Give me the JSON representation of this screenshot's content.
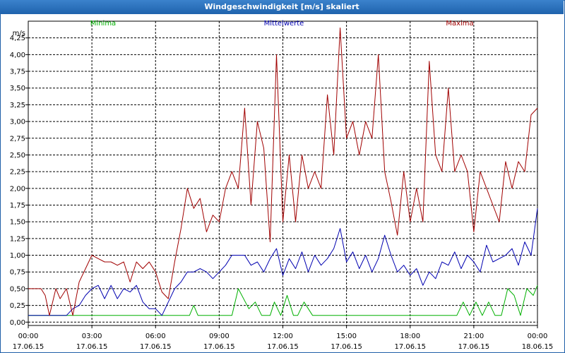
{
  "window": {
    "title": "Windgeschwindigkeit [m/s] skaliert"
  },
  "chart_data": {
    "type": "line",
    "title": "Windgeschwindigkeit [m/s] skaliert",
    "ylabel": "m/s",
    "ylim": [
      -0.05,
      4.5
    ],
    "xlim": [
      0,
      24
    ],
    "y_ticks": [
      "0,00",
      "0,25",
      "0,50",
      "0,75",
      "1,00",
      "1,25",
      "1,50",
      "1,75",
      "2,00",
      "2,25",
      "2,50",
      "2,75",
      "3,00",
      "3,25",
      "3,50",
      "3,75",
      "4,00",
      "4,25"
    ],
    "y_tick_values": [
      0,
      0.25,
      0.5,
      0.75,
      1,
      1.25,
      1.5,
      1.75,
      2,
      2.25,
      2.5,
      2.75,
      3,
      3.25,
      3.5,
      3.75,
      4,
      4.25
    ],
    "x_ticks": [
      {
        "time": "00:00",
        "date": "17.06.15"
      },
      {
        "time": "03:00",
        "date": "17.06.15"
      },
      {
        "time": "06:00",
        "date": "17.06.15"
      },
      {
        "time": "09:00",
        "date": "17.06.15"
      },
      {
        "time": "12:00",
        "date": "17.06.15"
      },
      {
        "time": "15:00",
        "date": "17.06.15"
      },
      {
        "time": "18:00",
        "date": "17.06.15"
      },
      {
        "time": "21:00",
        "date": "17.06.15"
      },
      {
        "time": "00:00",
        "date": "18.06.15"
      }
    ],
    "x_tick_hours": [
      0,
      3,
      6,
      9,
      12,
      15,
      18,
      21,
      24
    ],
    "legend": [
      "Minima",
      "Mittelwerte",
      "Maxima"
    ],
    "series": [
      {
        "name": "Minima",
        "color": "#00b000",
        "x": [
          0,
          7.6,
          7.8,
          8.0,
          9.6,
          9.9,
          10.4,
          10.7,
          11.0,
          11.4,
          11.6,
          11.9,
          12.2,
          12.5,
          12.7,
          13.0,
          13.4,
          13.8,
          14.2,
          14.6,
          15.0,
          15.4,
          15.8,
          16.2,
          16.6,
          17.0,
          17.4,
          17.8,
          18.2,
          18.6,
          19.0,
          19.4,
          19.8,
          20.2,
          20.5,
          20.8,
          21.1,
          21.4,
          21.7,
          22.0,
          22.3,
          22.6,
          22.9,
          23.2,
          23.5,
          23.8,
          24.0
        ],
        "values": [
          0.1,
          0.1,
          0.25,
          0.1,
          0.1,
          0.5,
          0.2,
          0.3,
          0.1,
          0.1,
          0.3,
          0.1,
          0.4,
          0.1,
          0.1,
          0.3,
          0.1,
          0.1,
          0.1,
          0.1,
          0.1,
          0.1,
          0.1,
          0.1,
          0.1,
          0.1,
          0.1,
          0.1,
          0.1,
          0.1,
          0.1,
          0.1,
          0.1,
          0.1,
          0.3,
          0.1,
          0.3,
          0.1,
          0.3,
          0.1,
          0.1,
          0.5,
          0.4,
          0.1,
          0.5,
          0.4,
          0.55
        ]
      },
      {
        "name": "Mittelwerte",
        "color": "#0000b0",
        "x": [
          0,
          1.5,
          1.8,
          2.1,
          2.4,
          2.7,
          3.0,
          3.3,
          3.6,
          3.9,
          4.2,
          4.5,
          4.8,
          5.1,
          5.4,
          5.7,
          6.0,
          6.3,
          6.6,
          6.9,
          7.2,
          7.5,
          7.8,
          8.1,
          8.4,
          8.7,
          9.0,
          9.3,
          9.6,
          9.9,
          10.2,
          10.5,
          10.8,
          11.1,
          11.4,
          11.7,
          12.0,
          12.3,
          12.6,
          12.9,
          13.2,
          13.5,
          13.8,
          14.1,
          14.4,
          14.7,
          15.0,
          15.3,
          15.6,
          15.9,
          16.2,
          16.5,
          16.8,
          17.1,
          17.4,
          17.7,
          18.0,
          18.3,
          18.6,
          18.9,
          19.2,
          19.5,
          19.8,
          20.1,
          20.4,
          20.7,
          21.0,
          21.3,
          21.6,
          21.9,
          22.2,
          22.5,
          22.8,
          23.1,
          23.4,
          23.7,
          24.0
        ],
        "values": [
          0.1,
          0.1,
          0.1,
          0.2,
          0.25,
          0.4,
          0.5,
          0.55,
          0.35,
          0.55,
          0.35,
          0.5,
          0.45,
          0.55,
          0.3,
          0.2,
          0.2,
          0.1,
          0.3,
          0.5,
          0.6,
          0.75,
          0.75,
          0.8,
          0.75,
          0.65,
          0.75,
          0.85,
          1.0,
          1.0,
          1.0,
          0.85,
          0.9,
          0.75,
          0.95,
          1.1,
          0.7,
          0.95,
          0.8,
          1.05,
          0.75,
          1.0,
          0.85,
          0.95,
          1.1,
          1.4,
          0.9,
          1.05,
          0.8,
          1.0,
          0.75,
          0.95,
          1.3,
          1.0,
          0.75,
          0.85,
          0.7,
          0.8,
          0.55,
          0.75,
          0.65,
          0.9,
          0.85,
          1.05,
          0.8,
          1.0,
          0.9,
          0.75,
          1.15,
          0.9,
          0.95,
          1.0,
          1.1,
          0.85,
          1.2,
          1.0,
          1.7
        ]
      },
      {
        "name": "Maxima",
        "color": "#a00000",
        "x": [
          0,
          0.6,
          0.8,
          1.0,
          1.3,
          1.5,
          1.8,
          2.1,
          2.4,
          2.7,
          3.0,
          3.3,
          3.6,
          3.9,
          4.2,
          4.5,
          4.8,
          5.1,
          5.4,
          5.7,
          6.0,
          6.3,
          6.6,
          6.9,
          7.2,
          7.5,
          7.8,
          8.1,
          8.4,
          8.7,
          9.0,
          9.3,
          9.6,
          9.9,
          10.2,
          10.5,
          10.8,
          11.1,
          11.4,
          11.7,
          12.0,
          12.3,
          12.6,
          12.9,
          13.2,
          13.5,
          13.8,
          14.1,
          14.4,
          14.7,
          15.0,
          15.3,
          15.6,
          15.9,
          16.2,
          16.5,
          16.8,
          17.1,
          17.4,
          17.7,
          18.0,
          18.3,
          18.6,
          18.9,
          19.2,
          19.5,
          19.8,
          20.1,
          20.4,
          20.7,
          21.0,
          21.3,
          21.6,
          21.9,
          22.2,
          22.5,
          22.8,
          23.1,
          23.4,
          23.7,
          24.0
        ],
        "values": [
          0.5,
          0.5,
          0.4,
          0.1,
          0.5,
          0.35,
          0.5,
          0.1,
          0.6,
          0.8,
          1.0,
          0.95,
          0.9,
          0.9,
          0.85,
          0.9,
          0.6,
          0.9,
          0.8,
          0.9,
          0.75,
          0.45,
          0.35,
          0.9,
          1.4,
          2.0,
          1.7,
          1.85,
          1.35,
          1.6,
          1.5,
          2.0,
          2.25,
          2.0,
          3.2,
          1.75,
          3.0,
          2.6,
          1.2,
          4.0,
          1.5,
          2.5,
          1.5,
          2.5,
          2.0,
          2.25,
          2.0,
          3.4,
          2.5,
          4.4,
          2.75,
          3.0,
          2.5,
          3.0,
          2.75,
          4.0,
          2.25,
          1.8,
          1.3,
          2.25,
          1.5,
          2.0,
          1.5,
          3.9,
          2.5,
          2.25,
          3.5,
          2.25,
          2.5,
          2.25,
          1.35,
          2.25,
          2.0,
          1.75,
          1.5,
          2.4,
          2.0,
          2.4,
          2.25,
          3.1,
          3.2
        ]
      }
    ]
  }
}
